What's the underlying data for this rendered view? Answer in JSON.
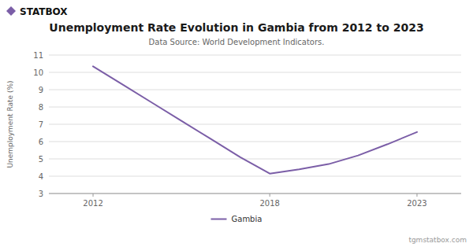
{
  "chart_data": {
    "type": "line",
    "title": "Unemployment Rate Evolution in Gambia from 2012 to 2023",
    "subtitle": "Data Source: World Development Indicators.",
    "y_label": "Unemployment Rate (%)",
    "annotations": [
      "STATBOX",
      "tgmstatbox.com"
    ],
    "x": [
      2012,
      2013,
      2014,
      2015,
      2016,
      2017,
      2018,
      2019,
      2020,
      2021,
      2022,
      2023
    ],
    "series": [
      {
        "name": "Gambia",
        "color": "#7B5EA7",
        "values": [
          10.35,
          9.3,
          8.25,
          7.2,
          6.15,
          5.1,
          4.15,
          4.4,
          4.7,
          5.2,
          5.85,
          6.55
        ]
      }
    ],
    "xlim": [
      2010.5,
      2024.5
    ],
    "xticks": [
      2012,
      2018,
      2023
    ],
    "ylim": [
      3,
      11
    ],
    "yticks": [
      3,
      4,
      5,
      6,
      7,
      8,
      9,
      10,
      11
    ],
    "grid": true,
    "legend": "bottom"
  }
}
